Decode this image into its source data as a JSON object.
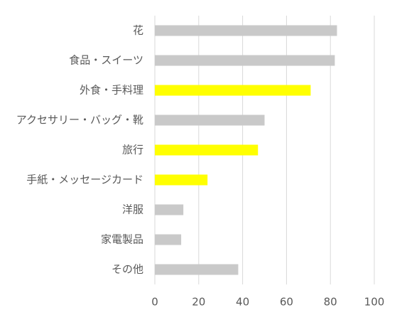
{
  "chart_data": {
    "type": "bar",
    "orientation": "horizontal",
    "categories": [
      "花",
      "食品・スイーツ",
      "外食・手料理",
      "アクセサリー・バッグ・靴",
      "旅行",
      "手紙・メッセージカード",
      "洋服",
      "家電製品",
      "その他"
    ],
    "values": [
      83,
      82,
      71,
      50,
      47,
      24,
      13,
      12,
      38
    ],
    "colors": [
      "#c9c9c9",
      "#c9c9c9",
      "#ffff00",
      "#c9c9c9",
      "#ffff00",
      "#ffff00",
      "#c9c9c9",
      "#c9c9c9",
      "#c9c9c9"
    ],
    "xlim": [
      0,
      100
    ],
    "xticks": [
      0,
      20,
      40,
      60,
      80,
      100
    ],
    "grid": true
  }
}
